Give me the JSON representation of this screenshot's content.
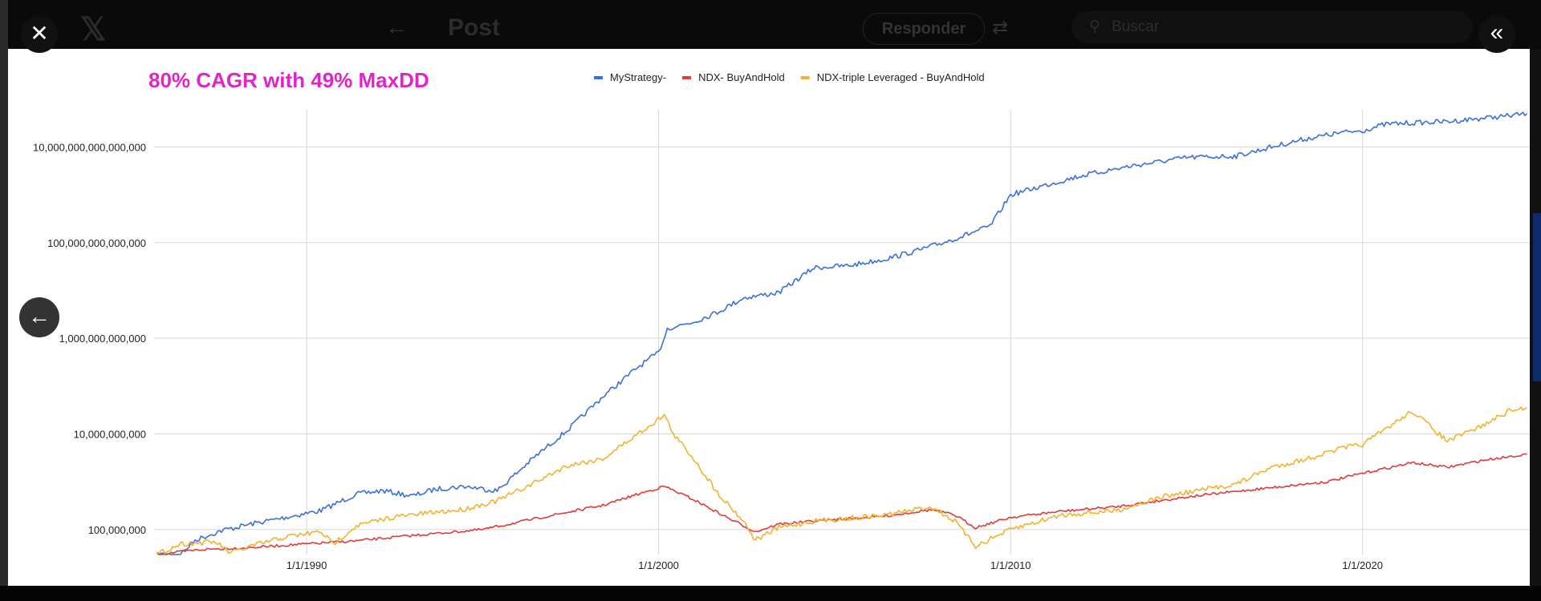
{
  "topbar": {
    "logo": "𝕏",
    "back": "←",
    "post_title": "Post",
    "reply_label": "Responder",
    "filter": "⇄",
    "search_placeholder": "Buscar",
    "search_icon": "⚲"
  },
  "controls": {
    "close": "✕",
    "collapse": "«",
    "prev": "←"
  },
  "chart_data": {
    "type": "line",
    "title": "80% CAGR with 49% MaxDD",
    "y_scale": "log",
    "ylim": [
      30000000,
      60000000000000000
    ],
    "y_ticks": [
      100000000,
      10000000000,
      1000000000000,
      100000000000000,
      10000000000000000
    ],
    "y_tick_labels": [
      "100,000,000",
      "10,000,000,000",
      "1,000,000,000,000",
      "100,000,000,000,000",
      "10,000,000,000,000,000"
    ],
    "x_ticks": [
      "1/1/1990",
      "1/1/2000",
      "1/1/2010",
      "1/1/2020"
    ],
    "legend_position": "top",
    "grid": true,
    "series": [
      {
        "name": "MyStrategy-",
        "color": "#3b6fdb",
        "points": [
          [
            "1985-10-01",
            30000000
          ],
          [
            "1986-06-01",
            30000000
          ],
          [
            "1986-11-01",
            60000000
          ],
          [
            "1987-08-01",
            95000000
          ],
          [
            "1988-06-01",
            130000000
          ],
          [
            "1989-06-01",
            180000000
          ],
          [
            "1990-06-01",
            250000000
          ],
          [
            "1991-06-01",
            550000000
          ],
          [
            "1992-03-01",
            650000000
          ],
          [
            "1993-01-01",
            500000000
          ],
          [
            "1993-09-01",
            700000000
          ],
          [
            "1994-07-01",
            800000000
          ],
          [
            "1995-06-01",
            650000000
          ],
          [
            "1996-06-01",
            3000000000
          ],
          [
            "1997-06-01",
            12000000000
          ],
          [
            "1998-06-01",
            60000000000
          ],
          [
            "1999-06-01",
            250000000000
          ],
          [
            "2000-01-01",
            500000000000
          ],
          [
            "2000-04-01",
            1600000000000
          ],
          [
            "2001-01-01",
            2200000000000
          ],
          [
            "2001-09-01",
            3500000000000
          ],
          [
            "2002-06-01",
            7000000000000
          ],
          [
            "2003-06-01",
            9000000000000
          ],
          [
            "2004-06-01",
            30000000000000
          ],
          [
            "2005-06-01",
            33000000000000
          ],
          [
            "2006-06-01",
            45000000000000
          ],
          [
            "2007-06-01",
            70000000000000
          ],
          [
            "2008-06-01",
            120000000000000
          ],
          [
            "2009-06-01",
            220000000000000
          ],
          [
            "2010-01-01",
            1000000000000000
          ],
          [
            "2011-01-01",
            1600000000000000
          ],
          [
            "2012-01-01",
            2500000000000000
          ],
          [
            "2013-06-01",
            4000000000000000
          ],
          [
            "2015-01-01",
            6000000000000000
          ],
          [
            "2016-06-01",
            6500000000000000
          ],
          [
            "2017-06-01",
            10000000000000000
          ],
          [
            "2018-06-01",
            15000000000000000
          ],
          [
            "2019-06-01",
            20000000000000000
          ],
          [
            "2020-01-01",
            22000000000000000
          ],
          [
            "2020-09-01",
            30000000000000000
          ],
          [
            "2021-06-01",
            32000000000000000
          ],
          [
            "2022-06-01",
            34000000000000000
          ],
          [
            "2023-06-01",
            40000000000000000
          ],
          [
            "2024-03-01",
            45000000000000000
          ],
          [
            "2024-09-01",
            50000000000000000
          ]
        ]
      },
      {
        "name": "NDX- BuyAndHold",
        "color": "#e03a3a",
        "points": [
          [
            "1985-10-01",
            30000000
          ],
          [
            "1987-01-01",
            38000000
          ],
          [
            "1988-06-01",
            42000000
          ],
          [
            "1990-01-01",
            50000000
          ],
          [
            "1991-06-01",
            58000000
          ],
          [
            "1993-01-01",
            75000000
          ],
          [
            "1995-01-01",
            100000000
          ],
          [
            "1997-01-01",
            200000000
          ],
          [
            "1998-06-01",
            320000000
          ],
          [
            "1999-06-01",
            550000000
          ],
          [
            "2000-03-01",
            800000000
          ],
          [
            "2001-01-01",
            420000000
          ],
          [
            "2002-01-01",
            170000000
          ],
          [
            "2002-10-01",
            90000000
          ],
          [
            "2003-06-01",
            130000000
          ],
          [
            "2004-06-01",
            150000000
          ],
          [
            "2006-06-01",
            190000000
          ],
          [
            "2007-10-01",
            260000000
          ],
          [
            "2008-06-01",
            200000000
          ],
          [
            "2009-01-01",
            110000000
          ],
          [
            "2010-01-01",
            180000000
          ],
          [
            "2011-06-01",
            240000000
          ],
          [
            "2013-01-01",
            300000000
          ],
          [
            "2015-01-01",
            480000000
          ],
          [
            "2017-01-01",
            700000000
          ],
          [
            "2019-01-01",
            1000000000
          ],
          [
            "2020-01-01",
            1500000000
          ],
          [
            "2021-06-01",
            2500000000
          ],
          [
            "2022-06-01",
            2000000000
          ],
          [
            "2023-06-01",
            2800000000
          ],
          [
            "2024-09-01",
            3800000000
          ]
        ]
      },
      {
        "name": "NDX-triple Leveraged - BuyAndHold",
        "color": "#f2b230",
        "points": [
          [
            "1985-10-01",
            30000000
          ],
          [
            "1986-06-01",
            50000000
          ],
          [
            "1987-06-01",
            55000000
          ],
          [
            "1987-11-01",
            32000000
          ],
          [
            "1988-06-01",
            45000000
          ],
          [
            "1989-06-01",
            70000000
          ],
          [
            "1990-06-01",
            90000000
          ],
          [
            "1990-10-01",
            50000000
          ],
          [
            "1991-06-01",
            120000000
          ],
          [
            "1992-06-01",
            180000000
          ],
          [
            "1993-06-01",
            220000000
          ],
          [
            "1994-06-01",
            260000000
          ],
          [
            "1995-06-01",
            400000000
          ],
          [
            "1996-06-01",
            900000000
          ],
          [
            "1997-06-01",
            2200000000
          ],
          [
            "1998-06-01",
            3000000000
          ],
          [
            "1999-06-01",
            10000000000
          ],
          [
            "2000-03-01",
            25000000000
          ],
          [
            "2000-06-01",
            10000000000
          ],
          [
            "2001-01-01",
            3000000000
          ],
          [
            "2001-09-01",
            600000000
          ],
          [
            "2002-06-01",
            150000000
          ],
          [
            "2002-10-01",
            60000000
          ],
          [
            "2003-06-01",
            110000000
          ],
          [
            "2004-06-01",
            150000000
          ],
          [
            "2006-06-01",
            200000000
          ],
          [
            "2007-10-01",
            300000000
          ],
          [
            "2008-06-01",
            150000000
          ],
          [
            "2009-01-01",
            45000000
          ],
          [
            "2010-01-01",
            100000000
          ],
          [
            "2011-06-01",
            200000000
          ],
          [
            "2013-01-01",
            250000000
          ],
          [
            "2014-06-01",
            500000000
          ],
          [
            "2016-06-01",
            900000000
          ],
          [
            "2017-06-01",
            2000000000
          ],
          [
            "2018-06-01",
            3000000000
          ],
          [
            "2019-06-01",
            5000000000
          ],
          [
            "2020-01-01",
            6000000000
          ],
          [
            "2021-06-01",
            30000000000
          ],
          [
            "2022-06-01",
            7000000000
          ],
          [
            "2023-06-01",
            15000000000
          ],
          [
            "2024-03-01",
            30000000000
          ],
          [
            "2024-09-01",
            35000000000
          ]
        ]
      }
    ]
  }
}
